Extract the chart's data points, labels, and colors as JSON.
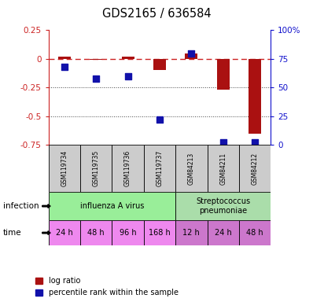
{
  "title": "GDS2165 / 636584",
  "samples": [
    "GSM119734",
    "GSM119735",
    "GSM119736",
    "GSM119737",
    "GSM84213",
    "GSM84211",
    "GSM84212"
  ],
  "log_ratio": [
    0.02,
    -0.01,
    0.02,
    -0.1,
    0.05,
    -0.27,
    -0.65
  ],
  "percentile_rank": [
    68,
    58,
    60,
    22,
    80,
    2,
    2
  ],
  "infection_groups": [
    {
      "label": "influenza A virus",
      "start": 0,
      "end": 4,
      "color": "#99ee99"
    },
    {
      "label": "Streptococcus\npneumoniae",
      "start": 4,
      "end": 7,
      "color": "#aaddaa"
    }
  ],
  "time_labels": [
    "24 h",
    "48 h",
    "96 h",
    "168 h",
    "12 h",
    "24 h",
    "48 h"
  ],
  "time_colors_influenza": "#ee88ee",
  "time_colors_strep": "#cc77cc",
  "bar_color": "#aa1111",
  "dot_color": "#1111aa",
  "zero_line_color": "#cc2222",
  "grid_color": "#444444",
  "ylim_left": [
    -0.75,
    0.25
  ],
  "ylim_right": [
    0,
    100
  ],
  "yticks_left": [
    0.25,
    0.0,
    -0.25,
    -0.5,
    -0.75
  ],
  "yticks_right": [
    100,
    75,
    50,
    25,
    0
  ],
  "sample_box_color": "#cccccc",
  "background_color": "#ffffff"
}
